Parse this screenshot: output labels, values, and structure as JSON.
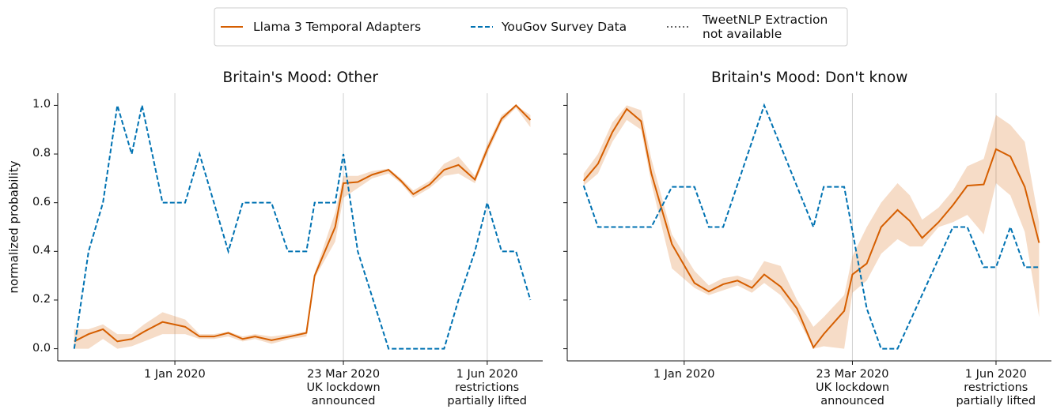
{
  "legend": [
    {
      "name": "Llama 3 Temporal Adapters",
      "color": "#d55e00",
      "dash": "solid"
    },
    {
      "name": "YouGov Survey Data",
      "color": "#0072b2",
      "dash": "dashed"
    },
    {
      "name": "TweetNLP Extraction\nnot available",
      "color": "#666666",
      "dash": "dotted"
    }
  ],
  "chart_data": [
    {
      "type": "line",
      "title": "Britain's Mood: Other",
      "ylabel": "normalized probability",
      "xlim": [
        "2019-11-05",
        "2020-06-28"
      ],
      "xticks": [
        {
          "value": "2020-01-01",
          "label": "1 Jan 2020"
        },
        {
          "value": "2020-03-23",
          "label": "23 Mar 2020\nUK lockdown\nannounced"
        },
        {
          "value": "2020-06-01",
          "label": "1 Jun 2020\nrestrictions\npartially lifted"
        }
      ],
      "ylim": [
        -0.05,
        1.05
      ],
      "yticks": [
        {
          "value": 0,
          "label": "0.0"
        },
        0.2,
        0.4,
        0.6,
        0.8,
        {
          "value": 1,
          "label": "1.0"
        }
      ],
      "show_ytick_labels": true,
      "grid_x": true,
      "series": [
        {
          "x": [
            "2019-11-13",
            "2019-11-20",
            "2019-11-27",
            "2019-12-04",
            "2019-12-11",
            "2019-12-17",
            "2019-12-26",
            "2020-01-06",
            "2020-01-13",
            "2020-01-20",
            "2020-01-27",
            "2020-02-03",
            "2020-02-09",
            "2020-02-17",
            "2020-02-26",
            "2020-03-05",
            "2020-03-09",
            "2020-03-19",
            "2020-03-23",
            "2020-03-30",
            "2020-04-06",
            "2020-04-14",
            "2020-04-20",
            "2020-04-26",
            "2020-05-04",
            "2020-05-11",
            "2020-05-18",
            "2020-05-26",
            "2020-06-01",
            "2020-06-08",
            "2020-06-15",
            "2020-06-22"
          ],
          "values": [
            0.03,
            0.06,
            0.08,
            0.03,
            0.04,
            0.07,
            0.11,
            0.09,
            0.05,
            0.05,
            0.065,
            0.04,
            0.05,
            0.035,
            0.05,
            0.065,
            0.3,
            0.5,
            0.68,
            0.685,
            0.715,
            0.735,
            0.69,
            0.635,
            0.675,
            0.735,
            0.755,
            0.695,
            0.82,
            0.945,
            1.0,
            0.94
          ],
          "lower": [
            0.0,
            0.0,
            0.04,
            0.0,
            0.01,
            0.03,
            0.06,
            0.06,
            0.04,
            0.04,
            0.05,
            0.03,
            0.04,
            0.02,
            0.04,
            0.05,
            0.29,
            0.44,
            0.62,
            0.66,
            0.7,
            0.72,
            0.68,
            0.62,
            0.66,
            0.71,
            0.72,
            0.68,
            0.8,
            0.93,
            0.99,
            0.91
          ],
          "upper": [
            0.08,
            0.08,
            0.1,
            0.06,
            0.06,
            0.1,
            0.15,
            0.12,
            0.06,
            0.06,
            0.07,
            0.05,
            0.06,
            0.05,
            0.06,
            0.07,
            0.31,
            0.56,
            0.71,
            0.71,
            0.73,
            0.74,
            0.7,
            0.65,
            0.69,
            0.76,
            0.79,
            0.71,
            0.84,
            0.96,
            1.0,
            0.96
          ]
        },
        {
          "x": [
            "2019-11-13",
            "2019-11-20",
            "2019-11-27",
            "2019-12-04",
            "2019-12-11",
            "2019-12-16",
            "2019-12-26",
            "2020-01-06",
            "2020-01-13",
            "2020-01-27",
            "2020-02-03",
            "2020-02-17",
            "2020-02-25",
            "2020-03-05",
            "2020-03-09",
            "2020-03-19",
            "2020-03-23",
            "2020-03-30",
            "2020-04-14",
            "2020-05-11",
            "2020-05-18",
            "2020-05-26",
            "2020-06-01",
            "2020-06-08",
            "2020-06-15",
            "2020-06-22"
          ],
          "values": [
            0,
            0.4,
            0.6,
            1.0,
            0.8,
            1.0,
            0.6,
            0.6,
            0.8,
            0.4,
            0.6,
            0.6,
            0.4,
            0.4,
            0.6,
            0.6,
            0.8,
            0.4,
            0,
            0,
            0.2,
            0.4,
            0.6,
            0.4,
            0.4,
            0.2
          ]
        }
      ]
    },
    {
      "type": "line",
      "title": "Britain's Mood: Don't know",
      "xlim": [
        "2019-11-05",
        "2020-06-28"
      ],
      "xticks": [
        {
          "value": "2020-01-01",
          "label": "1 Jan 2020"
        },
        {
          "value": "2020-03-23",
          "label": "23 Mar 2020\nUK lockdown\nannounced"
        },
        {
          "value": "2020-06-01",
          "label": "1 Jun 2020\nrestrictions\npartially lifted"
        }
      ],
      "ylim": [
        -0.05,
        1.05
      ],
      "yticks": [
        0,
        0.2,
        0.4,
        0.6,
        0.8,
        1
      ],
      "show_ytick_labels": false,
      "grid_x": true,
      "series": [
        {
          "x": [
            "2019-11-13",
            "2019-11-20",
            "2019-11-27",
            "2019-12-04",
            "2019-12-11",
            "2019-12-16",
            "2019-12-26",
            "2020-01-06",
            "2020-01-13",
            "2020-01-20",
            "2020-01-27",
            "2020-02-03",
            "2020-02-09",
            "2020-02-17",
            "2020-02-25",
            "2020-03-04",
            "2020-03-09",
            "2020-03-19",
            "2020-03-23",
            "2020-03-30",
            "2020-04-06",
            "2020-04-14",
            "2020-04-20",
            "2020-04-26",
            "2020-05-04",
            "2020-05-11",
            "2020-05-18",
            "2020-05-26",
            "2020-06-01",
            "2020-06-08",
            "2020-06-15",
            "2020-06-22"
          ],
          "values": [
            0.69,
            0.76,
            0.89,
            0.985,
            0.935,
            0.72,
            0.43,
            0.27,
            0.235,
            0.265,
            0.28,
            0.25,
            0.305,
            0.255,
            0.165,
            0.005,
            0.06,
            0.155,
            0.305,
            0.35,
            0.5,
            0.57,
            0.525,
            0.455,
            0.52,
            0.59,
            0.67,
            0.675,
            0.82,
            0.79,
            0.665,
            0.435
          ],
          "lower": [
            0.67,
            0.72,
            0.85,
            0.94,
            0.9,
            0.68,
            0.33,
            0.25,
            0.22,
            0.24,
            0.26,
            0.23,
            0.27,
            0.22,
            0.13,
            0.0,
            0.01,
            0.0,
            0.23,
            0.28,
            0.39,
            0.45,
            0.42,
            0.42,
            0.5,
            0.52,
            0.55,
            0.47,
            0.68,
            0.63,
            0.48,
            0.13
          ],
          "upper": [
            0.72,
            0.8,
            0.93,
            1.0,
            0.98,
            0.78,
            0.47,
            0.32,
            0.26,
            0.29,
            0.3,
            0.28,
            0.36,
            0.34,
            0.2,
            0.09,
            0.13,
            0.22,
            0.38,
            0.5,
            0.6,
            0.68,
            0.63,
            0.53,
            0.58,
            0.65,
            0.75,
            0.78,
            0.96,
            0.92,
            0.85,
            0.52
          ]
        },
        {
          "x": [
            "2019-11-13",
            "2019-11-20",
            "2019-12-16",
            "2019-12-26",
            "2020-01-06",
            "2020-01-13",
            "2020-01-20",
            "2020-02-09",
            "2020-03-04",
            "2020-03-09",
            "2020-03-19",
            "2020-03-30",
            "2020-04-06",
            "2020-04-14",
            "2020-05-11",
            "2020-05-18",
            "2020-05-26",
            "2020-06-01",
            "2020-06-08",
            "2020-06-15",
            "2020-06-22"
          ],
          "values": [
            0.67,
            0.5,
            0.5,
            0.665,
            0.665,
            0.5,
            0.5,
            1.0,
            0.5,
            0.665,
            0.665,
            0.165,
            0,
            0,
            0.5,
            0.5,
            0.335,
            0.335,
            0.5,
            0.335,
            0.335
          ]
        }
      ]
    }
  ]
}
